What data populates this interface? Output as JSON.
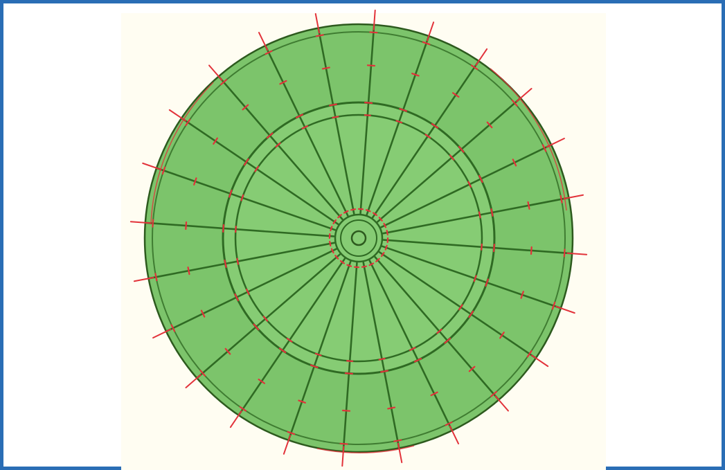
{
  "figure": {
    "frame_color": "#2a6db5",
    "paper_color": "#fffdf2",
    "disk_fill": "#86cc74",
    "disk_fill_outer_ring": "#7cc46b",
    "structure_line_color": "#2f6a23",
    "edge_line_color": "#2d5a1e",
    "marker_color": "#e2323a",
    "radial_member_count": 24,
    "circular_ring_count": 4,
    "hub_present": true
  }
}
